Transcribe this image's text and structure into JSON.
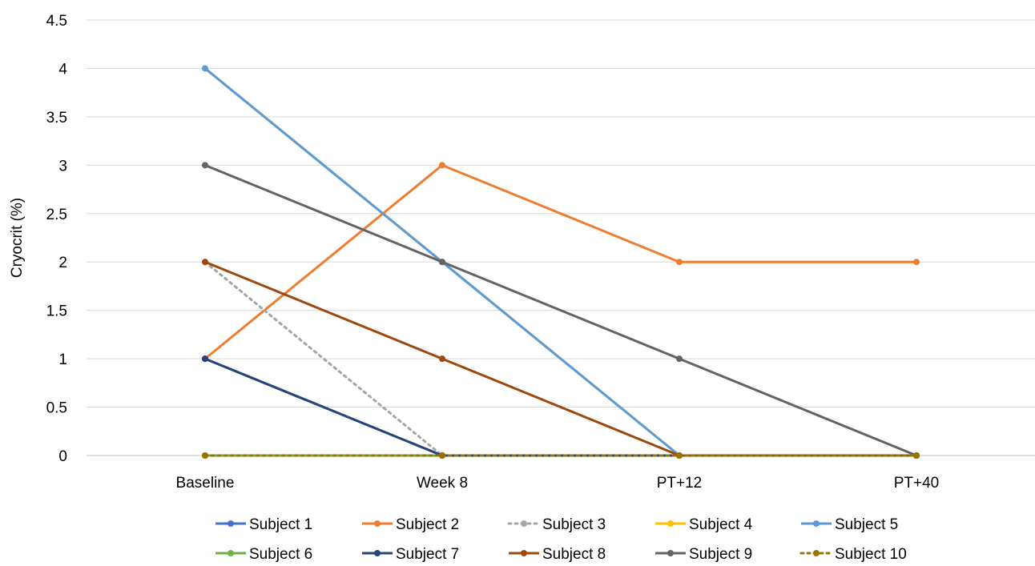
{
  "chart_data": {
    "type": "line",
    "title": "",
    "xlabel": "",
    "ylabel": "Cryocrit (%)",
    "categories": [
      "Baseline",
      "Week 8",
      "PT+12",
      "PT+40"
    ],
    "ylim": [
      0,
      4.5
    ],
    "yticks": [
      "0",
      "0.5",
      "1",
      "1.5",
      "2",
      "2.5",
      "3",
      "3.5",
      "4",
      "4.5"
    ],
    "grid": "horizontal",
    "legend_position": "bottom",
    "series": [
      {
        "name": "Subject 1",
        "color": "#4472c4",
        "dash": "solid",
        "values": [
          1,
          0,
          0,
          0
        ]
      },
      {
        "name": "Subject 2",
        "color": "#ed7d31",
        "dash": "solid",
        "values": [
          1,
          3,
          2,
          2
        ]
      },
      {
        "name": "Subject 3",
        "color": "#a5a5a5",
        "dash": "dotted",
        "values": [
          2,
          0,
          0,
          0
        ]
      },
      {
        "name": "Subject 4",
        "color": "#ffc000",
        "dash": "solid",
        "values": [
          4,
          2,
          0,
          0
        ]
      },
      {
        "name": "Subject 5",
        "color": "#5b9bd5",
        "dash": "solid",
        "values": [
          4,
          2,
          0,
          0
        ]
      },
      {
        "name": "Subject 6",
        "color": "#70ad47",
        "dash": "solid",
        "values": [
          0,
          0,
          0,
          0
        ]
      },
      {
        "name": "Subject 7",
        "color": "#264478",
        "dash": "solid",
        "values": [
          1,
          0,
          0,
          0
        ]
      },
      {
        "name": "Subject 8",
        "color": "#9e480e",
        "dash": "solid",
        "values": [
          2,
          1,
          0,
          0
        ]
      },
      {
        "name": "Subject 9",
        "color": "#636363",
        "dash": "solid",
        "values": [
          3,
          2,
          1,
          0
        ]
      },
      {
        "name": "Subject 10",
        "color": "#997300",
        "dash": "dotted",
        "values": [
          0,
          0,
          0,
          0
        ]
      }
    ]
  }
}
